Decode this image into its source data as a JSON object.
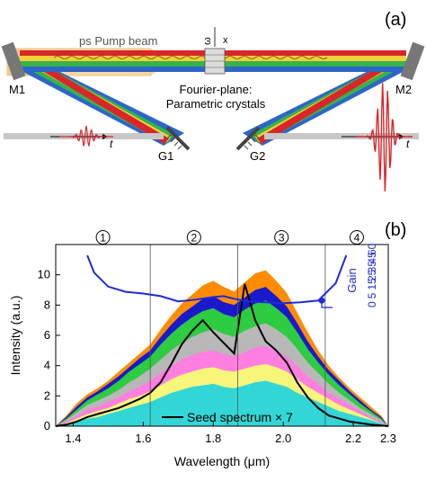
{
  "panel_a": {
    "label": "(a)",
    "pump_label": "ps Pump beam",
    "crystal_axis_omega": "ω",
    "crystal_axis_x": "x",
    "fourier_label_line1": "Fourier-plane:",
    "fourier_label_line2": "Parametric crystals",
    "mirror_left": "M1",
    "mirror_right": "M2",
    "grating_left": "G1",
    "grating_right": "G2",
    "time_label_left": "t",
    "time_label_right": "t"
  },
  "panel_b": {
    "label": "(b)",
    "region_labels": [
      "1",
      "2",
      "3",
      "4"
    ],
    "legend_label": "Seed spectrum × 7",
    "gain_label": "Gain",
    "colors": {
      "gain": "#1f2bd6",
      "seed": "#000000",
      "fill_base": "#33d6d6"
    }
  },
  "chart_data": {
    "type": "area",
    "xlabel": "Wavelength (μm)",
    "ylabel": "Intensity (a.u.)",
    "xlim": [
      1.35,
      2.3
    ],
    "ylim": [
      0,
      12
    ],
    "x_ticks": [
      "1.4",
      "1.6",
      "1.8",
      "2.0",
      "2.2",
      "2.3"
    ],
    "x_tick_values": [
      1.4,
      1.6,
      1.8,
      2.0,
      2.2,
      2.3
    ],
    "y_ticks": [
      "0",
      "2",
      "4",
      "6",
      "8",
      "10"
    ],
    "y_tick_values": [
      0,
      2,
      4,
      6,
      8,
      10
    ],
    "right_axis": {
      "label": "Gain",
      "ticks": [
        "0",
        "5",
        "15",
        "25",
        "35",
        "45",
        "60"
      ]
    },
    "region_boundaries": [
      1.62,
      1.87,
      2.12
    ],
    "x": [
      1.35,
      1.38,
      1.41,
      1.44,
      1.47,
      1.5,
      1.53,
      1.56,
      1.59,
      1.62,
      1.65,
      1.68,
      1.71,
      1.74,
      1.77,
      1.8,
      1.83,
      1.86,
      1.89,
      1.92,
      1.95,
      1.98,
      2.01,
      2.04,
      2.07,
      2.1,
      2.13,
      2.16,
      2.19,
      2.22,
      2.25,
      2.28,
      2.3
    ],
    "series": [
      {
        "color": "#33d6d6",
        "values": [
          0,
          0.1,
          0.3,
          0.5,
          0.6,
          0.8,
          1.0,
          1.2,
          1.4,
          1.6,
          1.9,
          2.2,
          2.4,
          2.6,
          2.7,
          2.8,
          2.6,
          2.5,
          2.7,
          2.9,
          3.0,
          2.8,
          2.6,
          2.2,
          1.9,
          1.6,
          1.3,
          1.0,
          0.8,
          0.6,
          0.4,
          0.2,
          0
        ]
      },
      {
        "color": "#f7f57a",
        "values": [
          0,
          0.2,
          0.5,
          0.8,
          1.0,
          1.2,
          1.5,
          1.8,
          2.0,
          2.3,
          2.7,
          3.1,
          3.4,
          3.6,
          3.8,
          3.9,
          3.7,
          3.6,
          3.8,
          4.0,
          4.1,
          3.9,
          3.6,
          3.1,
          2.6,
          2.2,
          1.8,
          1.4,
          1.1,
          0.8,
          0.5,
          0.2,
          0
        ]
      },
      {
        "color": "#ff7fe0",
        "values": [
          0,
          0.3,
          0.7,
          1.1,
          1.3,
          1.6,
          1.9,
          2.3,
          2.6,
          3.0,
          3.5,
          4.0,
          4.4,
          4.7,
          4.9,
          5.0,
          4.8,
          4.6,
          4.9,
          5.2,
          5.3,
          5.0,
          4.6,
          4.0,
          3.3,
          2.8,
          2.2,
          1.8,
          1.4,
          1.0,
          0.6,
          0.3,
          0
        ]
      },
      {
        "color": "#b8b8b8",
        "values": [
          0,
          0.4,
          0.9,
          1.4,
          1.7,
          2.0,
          2.4,
          2.9,
          3.3,
          3.8,
          4.4,
          5.0,
          5.5,
          5.9,
          6.2,
          6.4,
          6.1,
          5.9,
          6.3,
          6.6,
          6.8,
          6.4,
          5.9,
          5.1,
          4.2,
          3.5,
          2.8,
          2.2,
          1.7,
          1.2,
          0.8,
          0.4,
          0
        ]
      },
      {
        "color": "#2ecc40",
        "values": [
          0,
          0.5,
          1.1,
          1.7,
          2.1,
          2.5,
          3.0,
          3.6,
          4.1,
          4.6,
          5.4,
          6.1,
          6.7,
          7.2,
          7.6,
          7.8,
          7.4,
          7.2,
          7.7,
          8.1,
          8.3,
          7.8,
          7.2,
          6.2,
          5.1,
          4.2,
          3.4,
          2.7,
          2.1,
          1.5,
          1.0,
          0.5,
          0
        ]
      },
      {
        "color": "#1a1acc",
        "values": [
          0,
          0.6,
          1.3,
          1.9,
          2.3,
          2.8,
          3.3,
          3.9,
          4.5,
          5.0,
          5.9,
          6.7,
          7.4,
          7.9,
          8.4,
          8.6,
          8.2,
          8.0,
          8.5,
          9.0,
          9.2,
          8.6,
          7.9,
          6.8,
          5.6,
          4.6,
          3.7,
          3.0,
          2.3,
          1.7,
          1.1,
          0.6,
          0
        ]
      },
      {
        "color": "#ff8c00",
        "values": [
          0,
          0.7,
          1.5,
          2.1,
          2.5,
          3.0,
          3.6,
          4.2,
          4.8,
          5.4,
          6.4,
          7.3,
          8.1,
          8.7,
          9.3,
          9.6,
          9.2,
          8.9,
          9.5,
          10.1,
          10.3,
          9.6,
          8.8,
          7.5,
          6.2,
          5.0,
          4.0,
          3.2,
          2.5,
          1.9,
          1.3,
          0.7,
          0
        ]
      },
      {
        "color": "#000000",
        "name": "Seed spectrum × 7",
        "kind": "line",
        "values": [
          0,
          0.1,
          0.3,
          0.6,
          0.8,
          1.0,
          1.2,
          1.5,
          1.8,
          2.2,
          2.9,
          4.1,
          5.4,
          6.3,
          7.0,
          6.2,
          5.5,
          4.8,
          9.4,
          7.0,
          5.6,
          5.0,
          4.2,
          2.9,
          1.9,
          1.2,
          0.7,
          0.5,
          0.3,
          0.2,
          0.1,
          0.05,
          0
        ]
      }
    ],
    "gain_curve": {
      "x": [
        1.44,
        1.46,
        1.5,
        1.55,
        1.6,
        1.65,
        1.7,
        1.75,
        1.8,
        1.83,
        1.86,
        1.9,
        1.95,
        2.0,
        2.05,
        2.1,
        2.15,
        2.18
      ],
      "y": [
        60,
        40,
        24,
        18,
        16,
        13,
        7,
        9,
        12,
        13,
        10,
        7,
        6,
        5,
        6,
        8,
        28,
        60
      ]
    }
  }
}
